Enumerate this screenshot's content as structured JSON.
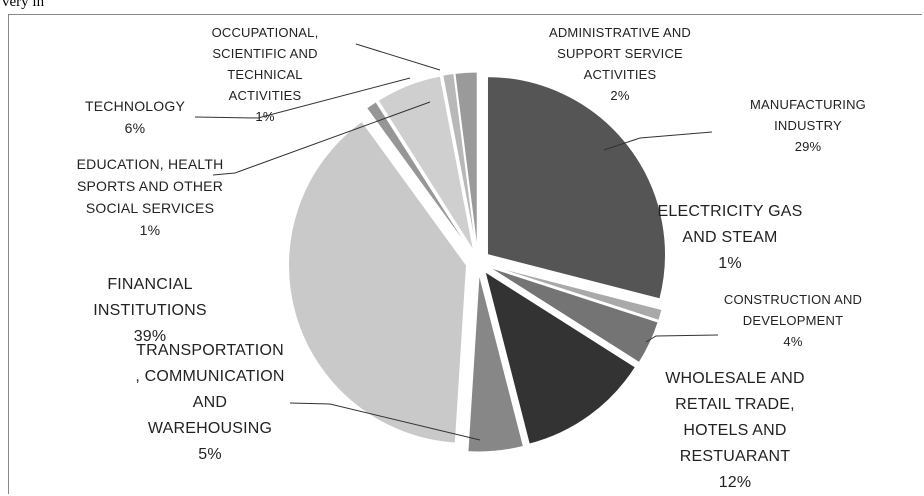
{
  "fragment": "very in",
  "chart_data": {
    "type": "pie",
    "categories": [
      "MANUFACTURING INDUSTRY",
      "ELECTRICITY GAS AND STEAM",
      "CONSTRUCTION AND DEVELOPMENT",
      "WHOLESALE AND RETAIL TRADE, HOTELS AND RESTUARANT",
      "TRANSPORTATION , COMMUNICATION AND WAREHOUSING",
      "FINANCIAL INSTITUTIONS",
      "EDUCATION, HEALTH SPORTS AND OTHER SOCIAL SERVICES",
      "TECHNOLOGY",
      "OCCUPATIONAL, SCIENTIFIC AND TECHNICAL ACTIVITIES",
      "ADMINISTRATIVE AND SUPPORT SERVICE ACTIVITIES"
    ],
    "values": [
      29,
      1,
      4,
      12,
      5,
      39,
      1,
      6,
      1,
      2
    ],
    "value_labels": [
      "29%",
      "1%",
      "4%",
      "12%",
      "5%",
      "39%",
      "1%",
      "6%",
      "1%",
      "2%"
    ],
    "colors": [
      "#555555",
      "#a9a9a9",
      "#747474",
      "#333333",
      "#878787",
      "#c9c9c9",
      "#969696",
      "#cfcfcf",
      "#b8b8b8",
      "#9a9a9a"
    ]
  }
}
